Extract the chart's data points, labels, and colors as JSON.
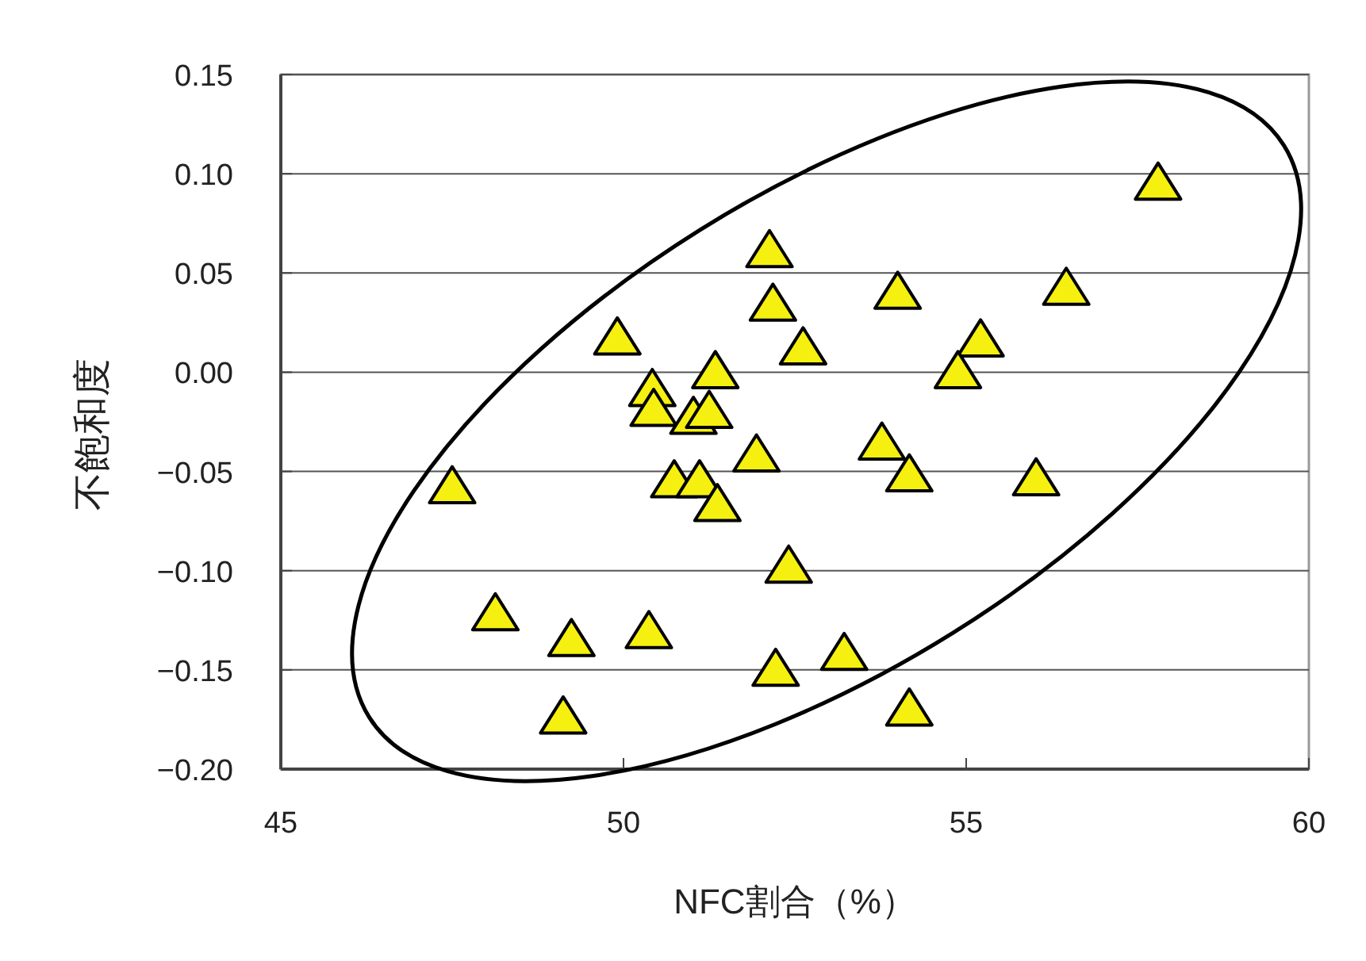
{
  "chart_data": {
    "type": "scatter",
    "xlabel": "NFC割合（%）",
    "ylabel": "不飽和度",
    "xlim": [
      45,
      60
    ],
    "xticks": [
      45,
      50,
      55,
      60
    ],
    "ylim": [
      -0.2,
      0.15
    ],
    "yticks": [
      {
        "value": -0.2,
        "label": "−0.20"
      },
      {
        "value": -0.15,
        "label": "−0.15"
      },
      {
        "value": -0.1,
        "label": "−0.10"
      },
      {
        "value": -0.05,
        "label": "−0.05"
      },
      {
        "value": 0,
        "label": "0.00"
      },
      {
        "value": 0.05,
        "label": "0.05"
      },
      {
        "value": 0.1,
        "label": "0.10"
      },
      {
        "value": 0.15,
        "label": "0.15"
      }
    ],
    "grid": "y",
    "marker": "triangle",
    "series": [
      {
        "color": "#f5f010",
        "x": [
          57.8,
          52.13,
          52.18,
          54.0,
          56.46,
          52.62,
          49.91,
          55.21,
          54.88,
          51.34,
          50.42,
          50.44,
          51.02,
          51.25,
          51.94,
          53.77,
          54.17,
          56.02,
          47.5,
          50.74,
          51.11,
          51.37,
          52.41,
          48.13,
          49.24,
          50.37,
          52.22,
          53.22,
          49.12,
          54.17
        ],
        "values": [
          0.095,
          0.061,
          0.034,
          0.04,
          0.042,
          0.012,
          0.017,
          0.016,
          0.0,
          0.0,
          -0.009,
          -0.019,
          -0.023,
          -0.02,
          -0.042,
          -0.036,
          -0.052,
          -0.054,
          -0.058,
          -0.055,
          -0.055,
          -0.067,
          -0.098,
          -0.122,
          -0.135,
          -0.131,
          -0.15,
          -0.142,
          -0.174,
          -0.17
        ]
      }
    ]
  }
}
